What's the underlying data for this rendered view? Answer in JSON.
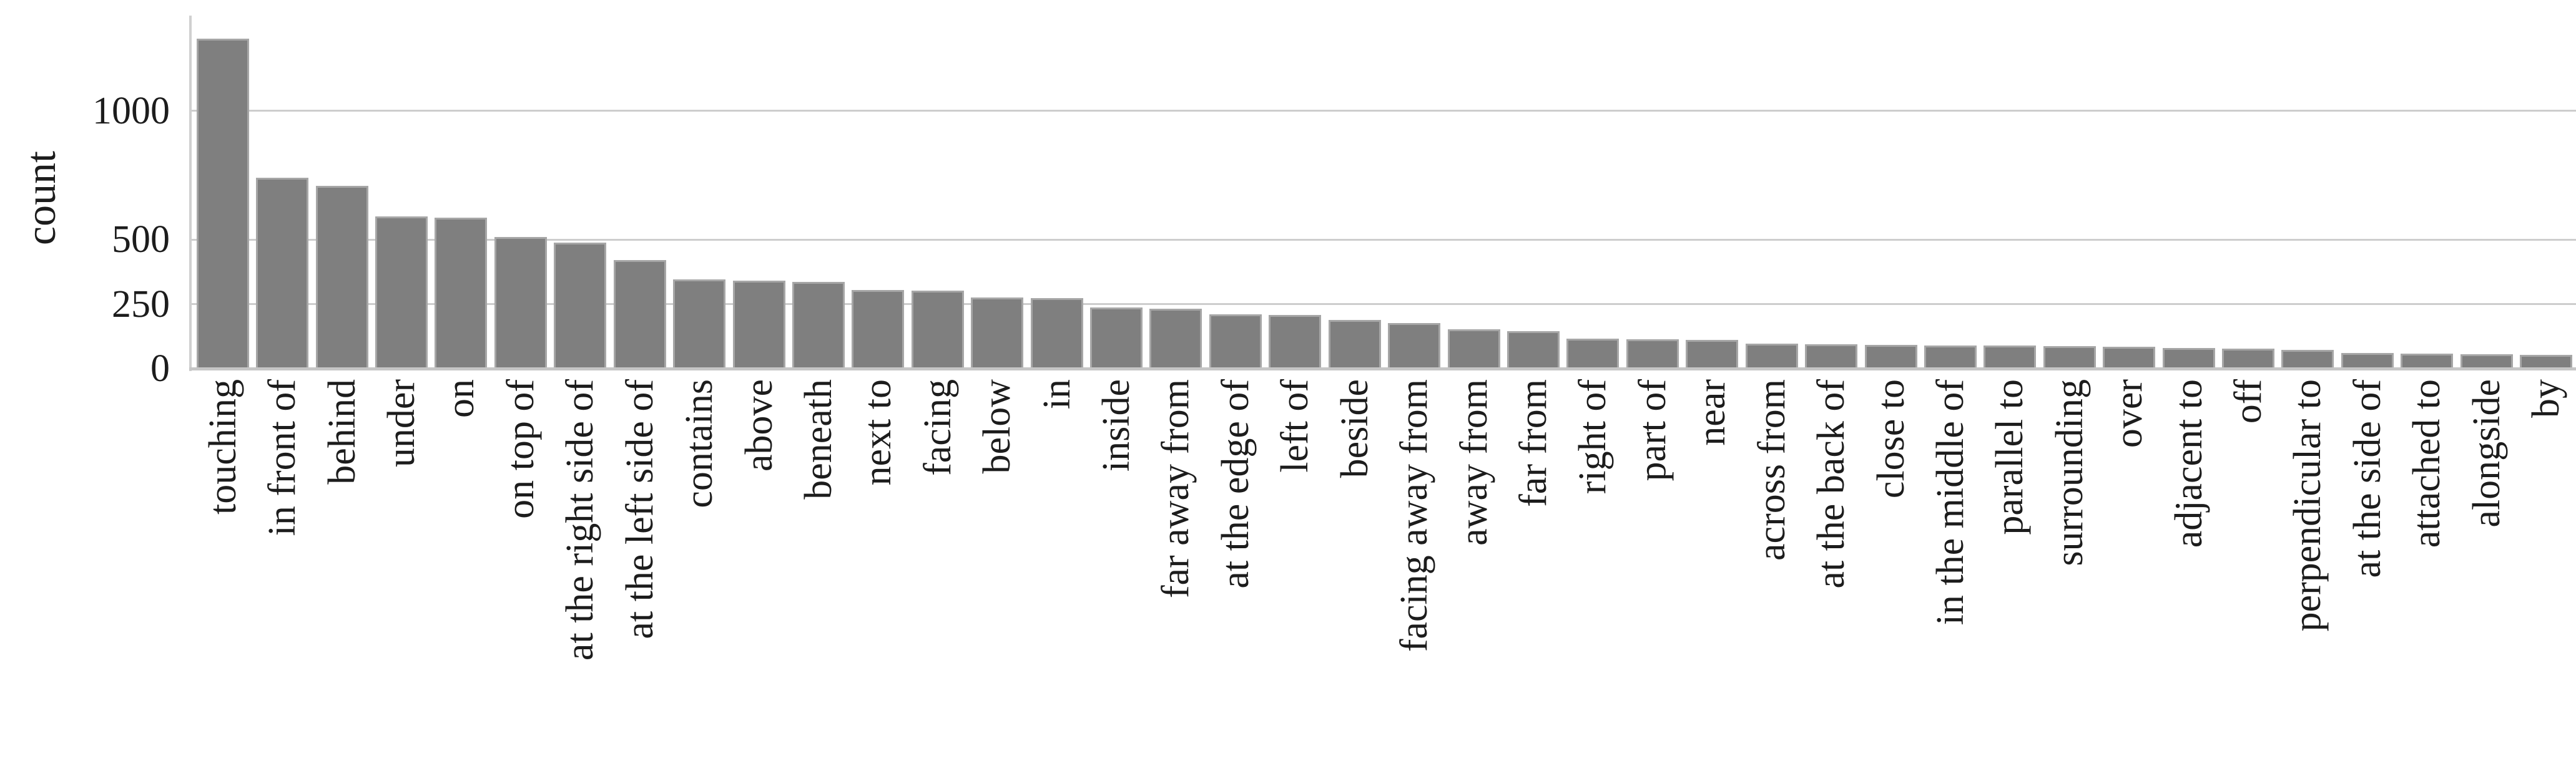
{
  "chart_data": {
    "type": "bar",
    "title": "",
    "xlabel": "",
    "ylabel": "count",
    "yticks": [
      0,
      250,
      500,
      1000
    ],
    "ylim": [
      0,
      1370
    ],
    "grid": "horizontal-gridlines-behind-bars",
    "legend": "none",
    "bar_color": "#7f7f7f",
    "bar_edge_color": "#a6a6a6",
    "gridline_color": "#cdcdcd",
    "text_color": "#1c1c1c",
    "categories": [
      "touching",
      "in front of",
      "behind",
      "under",
      "on",
      "on top of",
      "at the right side of",
      "at the left side of",
      "contains",
      "above",
      "beneath",
      "next to",
      "facing",
      "below",
      "in",
      "inside",
      "far away from",
      "at the edge of",
      "left of",
      "beside",
      "facing away from",
      "away from",
      "far from",
      "right of",
      "part of",
      "near",
      "across from",
      "at the back of",
      "close to",
      "in the middle of",
      "parallel to",
      "surrounding",
      "over",
      "adjacent to",
      "off",
      "perpendicular to",
      "at the side of",
      "attached to",
      "alongside",
      "by"
    ],
    "values": [
      1280,
      740,
      710,
      590,
      585,
      510,
      490,
      420,
      345,
      342,
      337,
      305,
      303,
      276,
      273,
      237,
      232,
      210,
      208,
      190,
      177,
      152,
      146,
      115,
      114,
      112,
      96,
      94,
      92,
      90,
      89,
      87,
      85,
      80,
      78,
      73,
      60,
      58,
      56,
      54
    ]
  }
}
